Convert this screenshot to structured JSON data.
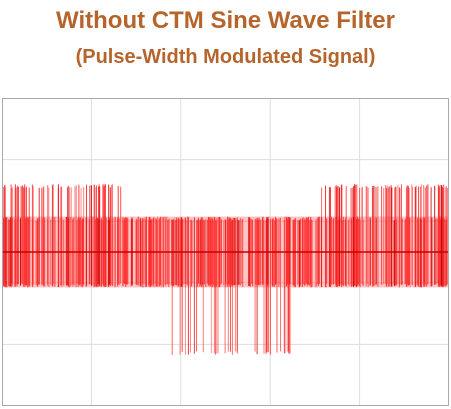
{
  "title": "Without CTM Sine Wave Filter",
  "subtitle": "(Pulse-Width Modulated Signal)",
  "colors": {
    "title": "#b5652b",
    "pulse": "#ff2a2a",
    "pulse_dark": "#c80000",
    "grid": "#dddddd",
    "frame": "#aaaaaa"
  },
  "chart_data": {
    "type": "line",
    "title": "Without CTM Sine Wave Filter",
    "subtitle": "(Pulse-Width Modulated Signal)",
    "xlabel": "",
    "ylabel": "",
    "grid": true,
    "legend": "none",
    "xlim": [
      0,
      1
    ],
    "ylim": [
      -1,
      1
    ],
    "x_gridlines": 5,
    "y_gridlines": 5,
    "dc_link_level": 0.23,
    "phase_level_spike": 0.44,
    "line_to_line_peak": 0.67,
    "baseline_noise": 0.24,
    "sine_fundamental_cycles": 1,
    "pulse_segments": [
      {
        "x_from": 0.0,
        "x_to": 0.27,
        "y_min": -0.23,
        "y_max": 0.44
      },
      {
        "x_from": 0.27,
        "x_to": 0.38,
        "y_min": -0.23,
        "y_max": 0.23
      },
      {
        "x_from": 0.38,
        "x_to": 0.65,
        "y_min": -0.67,
        "y_max": 0.23
      },
      {
        "x_from": 0.65,
        "x_to": 0.71,
        "y_min": -0.23,
        "y_max": 0.23
      },
      {
        "x_from": 0.71,
        "x_to": 1.0,
        "y_min": -0.23,
        "y_max": 0.44
      }
    ]
  }
}
